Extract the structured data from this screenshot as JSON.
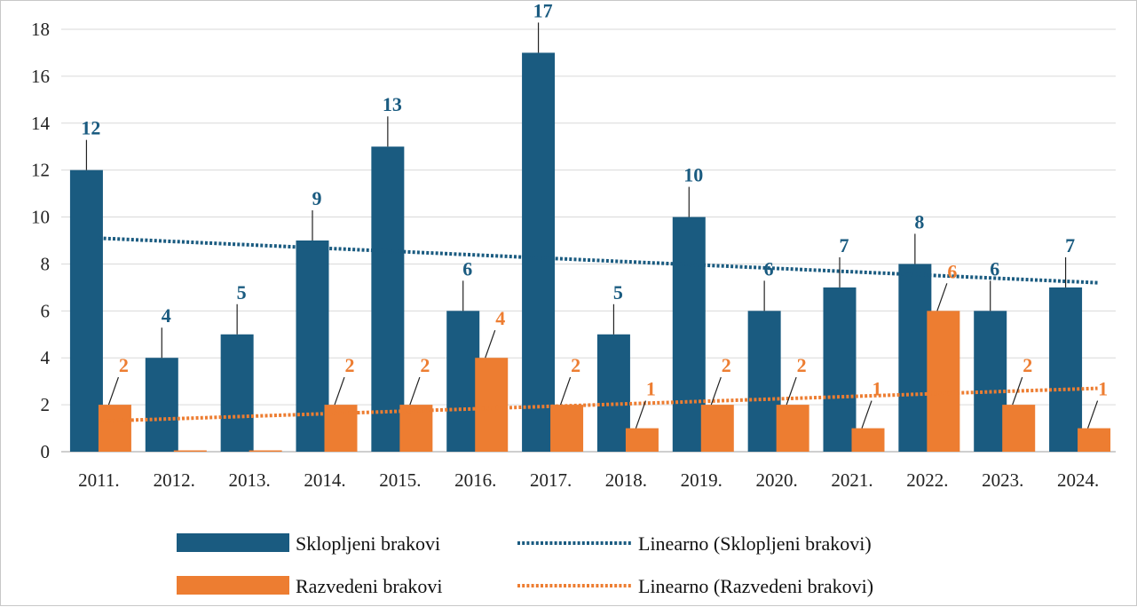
{
  "chart_data": {
    "type": "bar",
    "title": "",
    "xlabel": "",
    "ylabel": "",
    "ylim": [
      0,
      18
    ],
    "yticks": [
      0,
      2,
      4,
      6,
      8,
      10,
      12,
      14,
      16,
      18
    ],
    "grid": true,
    "legend_position": "bottom",
    "categories": [
      "2011.",
      "2012.",
      "2013.",
      "2014.",
      "2015.",
      "2016.",
      "2017.",
      "2018.",
      "2019.",
      "2020.",
      "2021.",
      "2022.",
      "2023.",
      "2024."
    ],
    "series": [
      {
        "name": "Sklopljeni brakovi",
        "color": "#1a5b80",
        "values": [
          12,
          4,
          5,
          9,
          13,
          6,
          17,
          5,
          10,
          6,
          7,
          8,
          6,
          7
        ],
        "labels": [
          "12",
          "4",
          "5",
          "9",
          "13",
          "6",
          "17",
          "5",
          "10",
          "6",
          "7",
          "8",
          "6",
          "7"
        ]
      },
      {
        "name": "Razvedeni brakovi",
        "color": "#ed7d31",
        "values": [
          2,
          0,
          0,
          2,
          2,
          4,
          2,
          1,
          2,
          2,
          1,
          6,
          2,
          1
        ],
        "labels": [
          "2",
          "",
          "",
          "2",
          "2",
          "4",
          "2",
          "1",
          "2",
          "2",
          "1",
          "6",
          "2",
          "1"
        ]
      }
    ],
    "trendlines": [
      {
        "name": "Linearno (Sklopljeni brakovi)",
        "color": "#1a5b80",
        "start": 9.1,
        "end": 7.2
      },
      {
        "name": "Linearno (Razvedeni brakovi)",
        "color": "#ed7d31",
        "start": 1.3,
        "end": 2.7
      }
    ]
  }
}
